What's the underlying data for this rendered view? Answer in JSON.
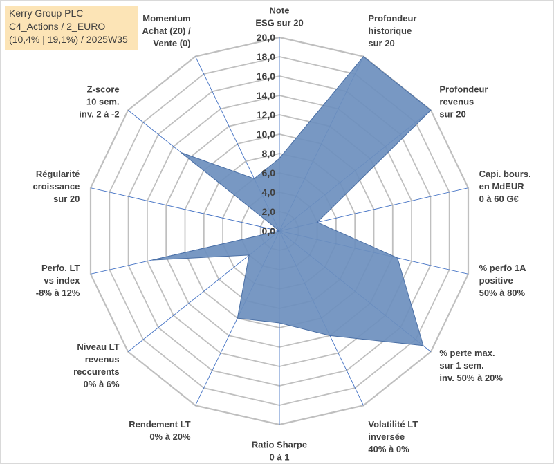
{
  "title_box": {
    "line1": "Kerry Group PLC",
    "line2": "C4_Actions / 2_EURO",
    "line3": "(10,4% | 19,1%) / 2025W35"
  },
  "colors": {
    "grid": "#bfbfbf",
    "spoke": "#4472c4",
    "fill": "#6d8fbe",
    "title_bg": "#fce4b6"
  },
  "chart_data": {
    "type": "radar",
    "title": "",
    "rmin": 0,
    "rmax": 20,
    "tick_step": 2,
    "tick_labels": [
      "0,0",
      "2,0",
      "4,0",
      "6,0",
      "8,0",
      "10,0",
      "12,0",
      "14,0",
      "16,0",
      "18,0",
      "20,0"
    ],
    "grid": true,
    "categories": [
      [
        "Note",
        "ESG sur 20"
      ],
      [
        "Profondeur",
        "historique",
        "sur 20"
      ],
      [
        "Profondeur",
        "revenus",
        "sur 20"
      ],
      [
        "Capi. bours.",
        "en MdEUR",
        "0 à 60 G€"
      ],
      [
        "% perfo 1A",
        "positive",
        "50% à 80%"
      ],
      [
        "% perte max.",
        "sur 1 sem.",
        "inv. 50% à 20%"
      ],
      [
        "Volatilité LT",
        "inversée",
        "40% à 0%"
      ],
      [
        "Ratio Sharpe",
        "0 à 1"
      ],
      [
        "Rendement LT",
        "0% à 20%"
      ],
      [
        "Niveau LT",
        "revenus",
        "reccurents",
        "0% à 6%"
      ],
      [
        "Perfo. LT",
        "vs index",
        "-8% à 12%"
      ],
      [
        "Régularité",
        "croissance",
        "sur 20"
      ],
      [
        "Z-score",
        "10 sem.",
        "inv. 2 à -2"
      ],
      [
        "Momentum",
        "Achat (20) /",
        "Vente (0)"
      ]
    ],
    "series": [
      {
        "values": [
          7.5,
          20.0,
          20.0,
          4.0,
          12.5,
          19.0,
          12.0,
          9.5,
          10.0,
          4.0,
          13.5,
          0.0,
          13.0,
          6.0
        ]
      }
    ]
  }
}
